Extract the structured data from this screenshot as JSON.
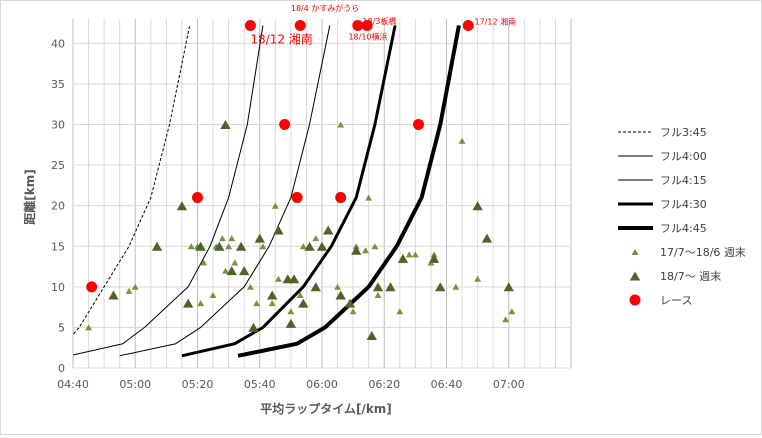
{
  "chart_data": {
    "type": "scatter",
    "xlabel": "平均ラップタイム[/km]",
    "ylabel": "距離[km]",
    "xlim_sec": [
      280,
      440
    ],
    "ylim": [
      0,
      43
    ],
    "x_ticks": [
      {
        "v": 280,
        "label": "04:40"
      },
      {
        "v": 300,
        "label": "05:00"
      },
      {
        "v": 320,
        "label": "05:20"
      },
      {
        "v": 340,
        "label": "05:40"
      },
      {
        "v": 360,
        "label": "06:00"
      },
      {
        "v": 380,
        "label": "06:20"
      },
      {
        "v": 400,
        "label": "06:40"
      },
      {
        "v": 420,
        "label": "07:00"
      }
    ],
    "y_ticks": [
      0,
      5,
      10,
      15,
      20,
      25,
      30,
      35,
      40
    ],
    "grid": true,
    "legend_position": "right",
    "colors": {
      "race": "#ff0000",
      "tri_light": "#77933c",
      "tri_dark": "#4f6228",
      "line": "#000000",
      "grid": "#d9d9d9"
    },
    "series": [
      {
        "name": "フル3:45",
        "kind": "line",
        "dash": "3,2",
        "width": 1,
        "points": [
          [
            280.2,
            4.2
          ],
          [
            282,
            5
          ],
          [
            290,
            10
          ],
          [
            298,
            15
          ],
          [
            305,
            21
          ],
          [
            311,
            30
          ],
          [
            317.5,
            42.2
          ]
        ]
      },
      {
        "name": "フル4:00",
        "kind": "line",
        "width": 1,
        "points": [
          [
            280,
            1.6
          ],
          [
            296,
            3
          ],
          [
            303,
            5
          ],
          [
            317,
            10
          ],
          [
            324,
            15
          ],
          [
            330,
            21
          ],
          [
            336,
            30
          ],
          [
            341,
            42.2
          ]
        ]
      },
      {
        "name": "フル4:15",
        "kind": "line",
        "width": 1,
        "points": [
          [
            295,
            1.5
          ],
          [
            313,
            3
          ],
          [
            321,
            5
          ],
          [
            335,
            10
          ],
          [
            343,
            15
          ],
          [
            350,
            21
          ],
          [
            356,
            30
          ],
          [
            362.5,
            42.2
          ]
        ]
      },
      {
        "name": "フル4:30",
        "kind": "line",
        "width": 3,
        "points": [
          [
            315,
            1.5
          ],
          [
            332,
            3
          ],
          [
            341,
            5
          ],
          [
            354,
            10
          ],
          [
            363,
            15
          ],
          [
            371,
            21
          ],
          [
            377,
            30
          ],
          [
            383.5,
            42.2
          ]
        ]
      },
      {
        "name": "フル4:45",
        "kind": "line",
        "width": 4,
        "points": [
          [
            333,
            1.5
          ],
          [
            352,
            3
          ],
          [
            361,
            5
          ],
          [
            375,
            10
          ],
          [
            384,
            15
          ],
          [
            392,
            21
          ],
          [
            398,
            30
          ],
          [
            404,
            42.2
          ]
        ]
      },
      {
        "name": "17/7〜18/6 週末",
        "kind": "triangle-small",
        "points": [
          [
            285,
            5
          ],
          [
            298,
            9.5
          ],
          [
            300,
            10
          ],
          [
            318,
            15
          ],
          [
            320,
            15
          ],
          [
            321,
            8
          ],
          [
            322,
            13
          ],
          [
            325,
            9
          ],
          [
            326,
            15
          ],
          [
            328,
            16
          ],
          [
            329,
            12
          ],
          [
            330,
            15
          ],
          [
            331,
            16
          ],
          [
            332,
            13
          ],
          [
            334,
            15
          ],
          [
            337,
            10
          ],
          [
            339,
            8
          ],
          [
            341,
            15
          ],
          [
            344,
            8
          ],
          [
            345,
            20
          ],
          [
            346,
            11
          ],
          [
            350,
            7
          ],
          [
            353,
            9
          ],
          [
            354,
            15
          ],
          [
            356,
            15
          ],
          [
            358,
            16
          ],
          [
            360,
            15
          ],
          [
            365,
            10
          ],
          [
            366,
            30
          ],
          [
            370,
            7
          ],
          [
            371,
            15
          ],
          [
            374,
            14.5
          ],
          [
            375,
            21
          ],
          [
            377,
            15
          ],
          [
            378,
            9
          ],
          [
            385,
            7
          ],
          [
            388,
            14
          ],
          [
            390,
            14
          ],
          [
            395,
            13
          ],
          [
            396,
            14
          ],
          [
            403,
            10
          ],
          [
            405,
            28
          ],
          [
            410,
            11
          ],
          [
            419,
            6
          ],
          [
            421,
            7
          ]
        ]
      },
      {
        "name": "18/7〜 週末",
        "kind": "triangle-large",
        "points": [
          [
            293,
            9
          ],
          [
            307,
            15
          ],
          [
            315,
            20
          ],
          [
            317,
            8
          ],
          [
            321,
            15
          ],
          [
            327,
            15
          ],
          [
            329,
            30
          ],
          [
            331,
            12
          ],
          [
            334,
            15
          ],
          [
            335,
            12
          ],
          [
            338,
            5
          ],
          [
            340,
            16
          ],
          [
            344,
            9
          ],
          [
            346,
            17
          ],
          [
            349,
            11
          ],
          [
            350,
            5.5
          ],
          [
            351,
            11
          ],
          [
            354,
            8
          ],
          [
            356,
            15
          ],
          [
            358,
            10
          ],
          [
            360,
            15
          ],
          [
            362,
            17
          ],
          [
            366,
            9
          ],
          [
            369,
            8
          ],
          [
            371,
            14.5
          ],
          [
            376,
            4
          ],
          [
            378,
            10
          ],
          [
            382,
            10
          ],
          [
            386,
            13.5
          ],
          [
            396,
            13.5
          ],
          [
            398,
            10
          ],
          [
            410,
            20
          ],
          [
            413,
            16
          ],
          [
            420,
            10
          ]
        ]
      },
      {
        "name": "レース",
        "kind": "circle",
        "points": [
          [
            286,
            10
          ],
          [
            320,
            21
          ],
          [
            337,
            42.2
          ],
          [
            348,
            30
          ],
          [
            352,
            21
          ],
          [
            353,
            42.2
          ],
          [
            366,
            21
          ],
          [
            371.5,
            42.2
          ],
          [
            374.5,
            42.2
          ],
          [
            391,
            30
          ],
          [
            407,
            42.2
          ]
        ]
      }
    ],
    "annotations": [
      {
        "text": "18/12 湘南",
        "x": 337,
        "y": 40,
        "size": 12
      },
      {
        "text": "18/4 かすみがうら",
        "x": 350,
        "y": 44,
        "size": 8
      },
      {
        "text": "18/3板橋",
        "x": 373,
        "y": 42.4,
        "size": 8
      },
      {
        "text": "18/10横浜",
        "x": 368.5,
        "y": 40.5,
        "size": 8
      },
      {
        "text": "17/12 湘南",
        "x": 409,
        "y": 42.3,
        "size": 8
      }
    ]
  }
}
